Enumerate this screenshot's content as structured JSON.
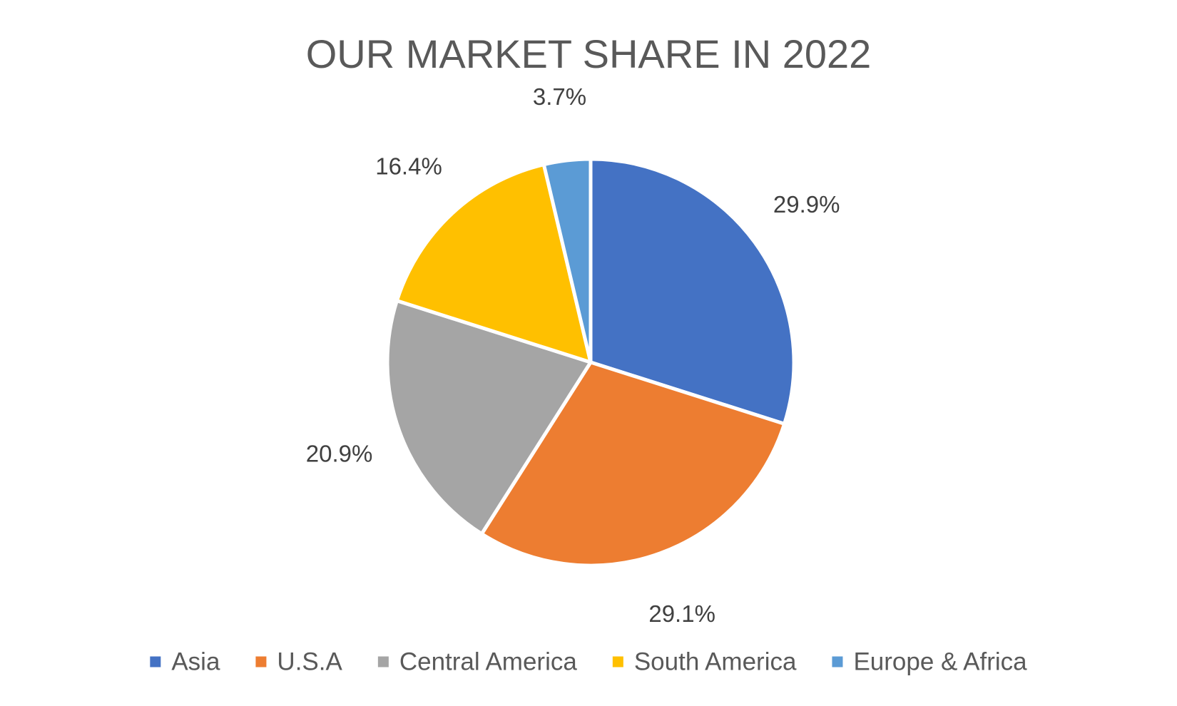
{
  "chart_data": {
    "type": "pie",
    "title": "OUR MARKET SHARE IN 2022",
    "categories": [
      "Asia",
      "U.S.A",
      "Central America",
      "South America",
      "Europe & Africa"
    ],
    "values": [
      29.9,
      29.1,
      20.9,
      16.4,
      3.7
    ],
    "data_labels": [
      "29.9%",
      "29.1%",
      "20.9%",
      "16.4%",
      "3.7%"
    ],
    "colors": [
      "#4472C4",
      "#ED7D31",
      "#A5A5A5",
      "#FFC000",
      "#5B9BD5"
    ],
    "start_angle": "12 o'clock",
    "direction": "clockwise",
    "legend_position": "bottom"
  }
}
